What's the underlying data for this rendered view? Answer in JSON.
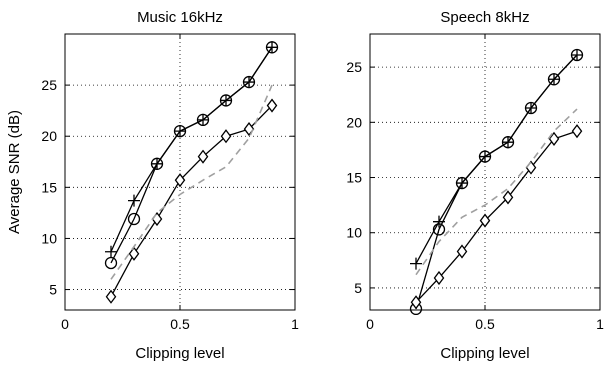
{
  "chart_data": [
    {
      "type": "line",
      "title": "Music 16kHz",
      "xlabel": "Clipping level",
      "ylabel": "Average SNR (dB)",
      "xlim": [
        0,
        1
      ],
      "ylim": [
        3,
        30
      ],
      "xticks": [
        "0",
        "0.5",
        "1"
      ],
      "yticks": [
        "5",
        "10",
        "15",
        "20",
        "25"
      ],
      "grid": true,
      "series": [
        {
          "marker": "plus",
          "style": "solid",
          "color": "#000000",
          "x": [
            0.2,
            0.3,
            0.4,
            0.5,
            0.6,
            0.7,
            0.8,
            0.9
          ],
          "y": [
            8.7,
            13.7,
            17.3,
            20.5,
            21.6,
            23.5,
            25.3,
            28.7
          ]
        },
        {
          "marker": "circle",
          "style": "solid",
          "color": "#000000",
          "x": [
            0.2,
            0.3,
            0.4,
            0.5,
            0.6,
            0.7,
            0.8,
            0.9
          ],
          "y": [
            7.6,
            11.9,
            17.3,
            20.5,
            21.6,
            23.5,
            25.3,
            28.7
          ]
        },
        {
          "marker": "diamond",
          "style": "solid",
          "color": "#000000",
          "x": [
            0.2,
            0.3,
            0.4,
            0.5,
            0.6,
            0.7,
            0.8,
            0.9
          ],
          "y": [
            4.3,
            8.5,
            11.9,
            15.7,
            18.0,
            20.0,
            20.7,
            23.0
          ]
        },
        {
          "marker": "none",
          "style": "dashed",
          "color": "#a0a0a0",
          "x": [
            0.2,
            0.3,
            0.4,
            0.5,
            0.6,
            0.7,
            0.8,
            0.9
          ],
          "y": [
            6.0,
            9.2,
            12.5,
            14.3,
            15.7,
            17.0,
            19.8,
            25.0
          ]
        }
      ]
    },
    {
      "type": "line",
      "title": "Speech 8kHz",
      "xlabel": "Clipping level",
      "ylabel": "",
      "xlim": [
        0,
        1
      ],
      "ylim": [
        3,
        28
      ],
      "xticks": [
        "0",
        "0.5",
        "1"
      ],
      "yticks": [
        "5",
        "10",
        "15",
        "20",
        "25"
      ],
      "grid": true,
      "series": [
        {
          "marker": "plus",
          "style": "solid",
          "color": "#000000",
          "x": [
            0.2,
            0.3,
            0.4,
            0.5,
            0.6,
            0.7,
            0.8,
            0.9
          ],
          "y": [
            7.2,
            11.0,
            14.5,
            16.9,
            18.2,
            21.3,
            23.9,
            26.1
          ]
        },
        {
          "marker": "circle",
          "style": "solid",
          "color": "#000000",
          "x": [
            0.2,
            0.3,
            0.4,
            0.5,
            0.6,
            0.7,
            0.8,
            0.9
          ],
          "y": [
            3.1,
            10.3,
            14.5,
            16.9,
            18.2,
            21.3,
            23.9,
            26.1
          ]
        },
        {
          "marker": "diamond",
          "style": "solid",
          "color": "#000000",
          "x": [
            0.2,
            0.3,
            0.4,
            0.5,
            0.6,
            0.7,
            0.8,
            0.9
          ],
          "y": [
            3.7,
            5.9,
            8.3,
            11.1,
            13.2,
            15.9,
            18.5,
            19.2
          ]
        },
        {
          "marker": "none",
          "style": "dashed",
          "color": "#a0a0a0",
          "x": [
            0.2,
            0.3,
            0.4,
            0.5,
            0.6,
            0.7,
            0.8,
            0.9
          ],
          "y": [
            6.2,
            9.2,
            11.4,
            12.5,
            14.0,
            16.4,
            19.2,
            21.2
          ]
        }
      ]
    }
  ]
}
